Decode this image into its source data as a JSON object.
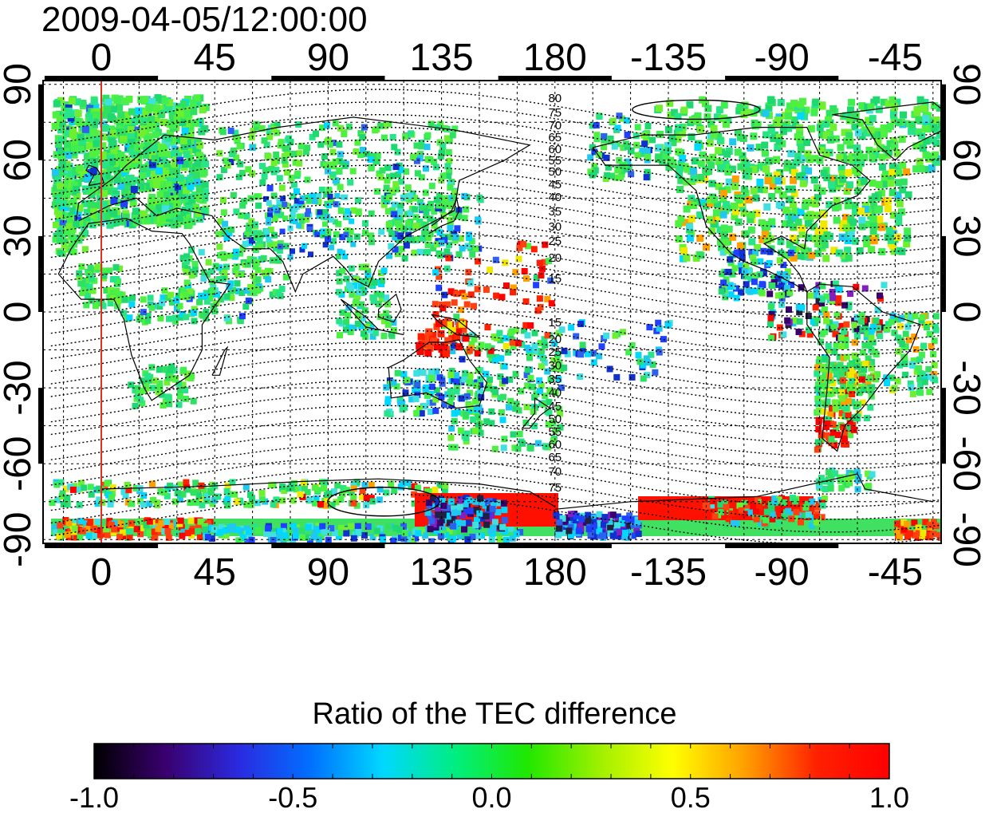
{
  "title": "2009-04-05/12:00:00",
  "map": {
    "top_axis_labels": [
      "0",
      "45",
      "90",
      "135",
      "180",
      "-135",
      "-90",
      "-45"
    ],
    "bottom_axis_labels": [
      "0",
      "45",
      "90",
      "135",
      "180",
      "-135",
      "-90",
      "-45"
    ],
    "left_axis_labels": [
      "90",
      "60",
      "30",
      "0",
      "-30",
      "-60",
      "-90"
    ],
    "right_axis_labels": [
      "90",
      "60",
      "30",
      "0",
      "-30",
      "-60",
      "-90"
    ],
    "contour_labels_north": [
      "80",
      "75",
      "70",
      "65",
      "60",
      "55",
      "50",
      "45",
      "40",
      "35",
      "30",
      "25",
      "20",
      "15"
    ],
    "contour_labels_south": [
      "15",
      "20",
      "25",
      "30",
      "35",
      "40",
      "45",
      "50",
      "55",
      "60",
      "65",
      "70",
      "75"
    ],
    "meridian_line_color": "#e0301e",
    "gridline": "dotted",
    "projection": "equirectangular"
  },
  "colorbar": {
    "title": "Ratio of the TEC difference",
    "tick_labels": [
      "-1.0",
      "-0.5",
      "0.0",
      "0.5",
      "1.0"
    ],
    "colormap": [
      "#000000",
      "#3a0070",
      "#2a2ae0",
      "#0070ff",
      "#00d8ff",
      "#00ee80",
      "#20e800",
      "#a0f000",
      "#ffff00",
      "#ffa000",
      "#ff2000",
      "#ff0000"
    ]
  }
}
